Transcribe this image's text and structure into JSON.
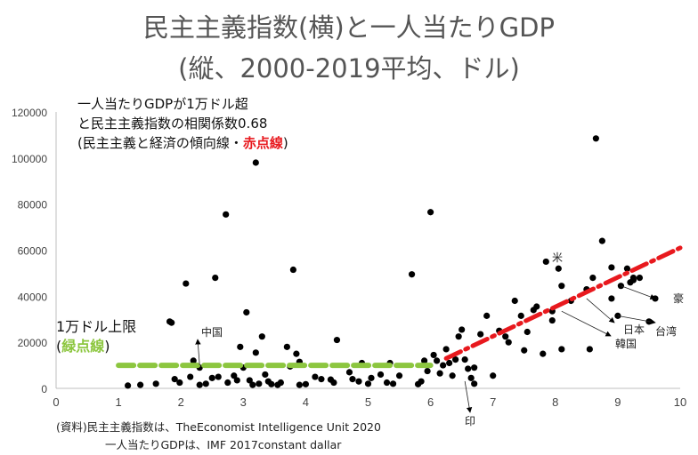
{
  "title_line1": "民主主義指数(横)と一人当たりGDP",
  "title_line2": "(縦、2000-2019平均、ドル)",
  "annotation_main": {
    "line1": "一人当たりGDPが1万ドル超",
    "line2": "と民主主義指数の相関係数0.68",
    "line3_prefix": "(民主主義と経済の傾向線・",
    "line3_red": "赤点線",
    "line3_suffix": ")"
  },
  "annotation_green": {
    "line1": "1万ドル上限",
    "line2_prefix": "(",
    "line2_green": "緑点線",
    "line2_suffix": ")"
  },
  "source": {
    "line1": "(資料)民主主義指数は、TheEconomist Intelligence Unit 2020",
    "line2": "一人当たりGDPは、IMF 2017constant dallar"
  },
  "colors": {
    "trend_red": "#e8191e",
    "cap_green": "#8cc63f",
    "point": "#000000",
    "axis": "#bfbfbf"
  },
  "chart_data": {
    "type": "scatter",
    "title": "民主主義指数(横)と一人当たりGDP (縦、2000-2019平均、ドル)",
    "xlabel": "",
    "ylabel": "",
    "xlim": [
      0,
      10
    ],
    "ylim": [
      0,
      120000
    ],
    "xticks": [
      "0",
      "1",
      "2",
      "3",
      "4",
      "5",
      "6",
      "7",
      "8",
      "9",
      "10"
    ],
    "yticks": [
      "0",
      "20000",
      "40000",
      "60000",
      "80000",
      "100000",
      "120000"
    ],
    "grid": false,
    "points": [
      [
        1.15,
        1200
      ],
      [
        1.35,
        1500
      ],
      [
        1.6,
        2000
      ],
      [
        1.9,
        4000
      ],
      [
        1.82,
        29000
      ],
      [
        1.85,
        28500
      ],
      [
        2.08,
        45500
      ],
      [
        1.98,
        2500
      ],
      [
        2.15,
        5000
      ],
      [
        2.2,
        12000
      ],
      [
        2.3,
        9000
      ],
      [
        2.3,
        1500
      ],
      [
        2.55,
        48000
      ],
      [
        2.72,
        75500
      ],
      [
        2.75,
        2500
      ],
      [
        2.85,
        5500
      ],
      [
        2.5,
        4500
      ],
      [
        2.4,
        2000
      ],
      [
        2.6,
        5000
      ],
      [
        2.9,
        3500
      ],
      [
        2.95,
        18000
      ],
      [
        3.05,
        33000
      ],
      [
        3.2,
        98000
      ],
      [
        3.0,
        9000
      ],
      [
        3.1,
        3500
      ],
      [
        3.15,
        1500
      ],
      [
        3.25,
        2000
      ],
      [
        3.3,
        22500
      ],
      [
        3.2,
        15500
      ],
      [
        3.35,
        6000
      ],
      [
        3.4,
        3000
      ],
      [
        3.45,
        1800
      ],
      [
        3.55,
        1500
      ],
      [
        3.7,
        18000
      ],
      [
        3.8,
        51500
      ],
      [
        3.75,
        9500
      ],
      [
        3.9,
        1500
      ],
      [
        4.0,
        1800
      ],
      [
        4.15,
        5000
      ],
      [
        4.25,
        4000
      ],
      [
        4.4,
        3800
      ],
      [
        4.5,
        21000
      ],
      [
        4.45,
        2500
      ],
      [
        3.6,
        2500
      ],
      [
        3.85,
        15000
      ],
      [
        3.9,
        11500
      ],
      [
        4.7,
        7000
      ],
      [
        4.75,
        4000
      ],
      [
        4.85,
        3000
      ],
      [
        4.9,
        11000
      ],
      [
        5.0,
        2000
      ],
      [
        5.05,
        4500
      ],
      [
        5.2,
        6000
      ],
      [
        5.3,
        2500
      ],
      [
        5.35,
        11000
      ],
      [
        5.4,
        2000
      ],
      [
        5.5,
        5500
      ],
      [
        5.7,
        49500
      ],
      [
        5.8,
        1800
      ],
      [
        5.85,
        3000
      ],
      [
        5.9,
        12000
      ],
      [
        5.95,
        7500
      ],
      [
        6.0,
        76500
      ],
      [
        6.05,
        14500
      ],
      [
        6.1,
        12000
      ],
      [
        6.15,
        6500
      ],
      [
        6.2,
        10000
      ],
      [
        6.25,
        17000
      ],
      [
        6.35,
        5500
      ],
      [
        6.4,
        12500
      ],
      [
        6.45,
        22500
      ],
      [
        6.5,
        25500
      ],
      [
        6.55,
        12500
      ],
      [
        6.6,
        8500
      ],
      [
        6.65,
        4500
      ],
      [
        6.7,
        9000
      ],
      [
        6.8,
        23500
      ],
      [
        6.9,
        31500
      ],
      [
        7.0,
        5500
      ],
      [
        7.1,
        25000
      ],
      [
        7.2,
        22500
      ],
      [
        7.35,
        38000
      ],
      [
        7.45,
        31500
      ],
      [
        7.55,
        24500
      ],
      [
        7.65,
        34000
      ],
      [
        7.7,
        35500
      ],
      [
        7.8,
        15000
      ],
      [
        7.85,
        55000
      ],
      [
        7.95,
        33500
      ],
      [
        8.05,
        52000
      ],
      [
        8.1,
        17000
      ],
      [
        8.25,
        38000
      ],
      [
        8.5,
        43000
      ],
      [
        8.55,
        17000
      ],
      [
        8.6,
        48000
      ],
      [
        8.75,
        64000
      ],
      [
        8.9,
        52500
      ],
      [
        9.0,
        31500
      ],
      [
        9.05,
        44500
      ],
      [
        9.15,
        52000
      ],
      [
        9.2,
        46000
      ],
      [
        9.25,
        47000
      ],
      [
        9.35,
        48000
      ],
      [
        9.6,
        39000
      ],
      [
        8.9,
        39000
      ],
      [
        8.65,
        108500
      ],
      [
        9.5,
        29000
      ],
      [
        9.25,
        48000
      ],
      [
        8.1,
        44500
      ],
      [
        7.5,
        16500
      ],
      [
        7.25,
        20000
      ],
      [
        6.7,
        2000
      ],
      [
        6.3,
        11000
      ],
      [
        7.95,
        29500
      ]
    ],
    "reference_lines": [
      {
        "name": "1万ドル上限 (緑点線)",
        "color": "green",
        "style": "dashed",
        "x": [
          1.0,
          6.0
        ],
        "y": [
          10000,
          10000
        ]
      },
      {
        "name": "傾向線 (赤点線)",
        "color": "red",
        "style": "dashed",
        "x": [
          6.25,
          10.0
        ],
        "y": [
          13000,
          61000
        ]
      }
    ],
    "point_labels": [
      {
        "text": "中国",
        "x": 2.3,
        "y": 10000
      },
      {
        "text": "印",
        "x": 6.55,
        "y": 4500
      },
      {
        "text": "米",
        "x": 7.85,
        "y": 55000
      },
      {
        "text": "豪",
        "x": 9.05,
        "y": 44500
      },
      {
        "text": "日本",
        "x": 8.5,
        "y": 39000
      },
      {
        "text": "台湾",
        "x": 9.0,
        "y": 31500
      },
      {
        "text": "韓国",
        "x": 8.1,
        "y": 33500
      }
    ],
    "correlation": 0.68
  }
}
